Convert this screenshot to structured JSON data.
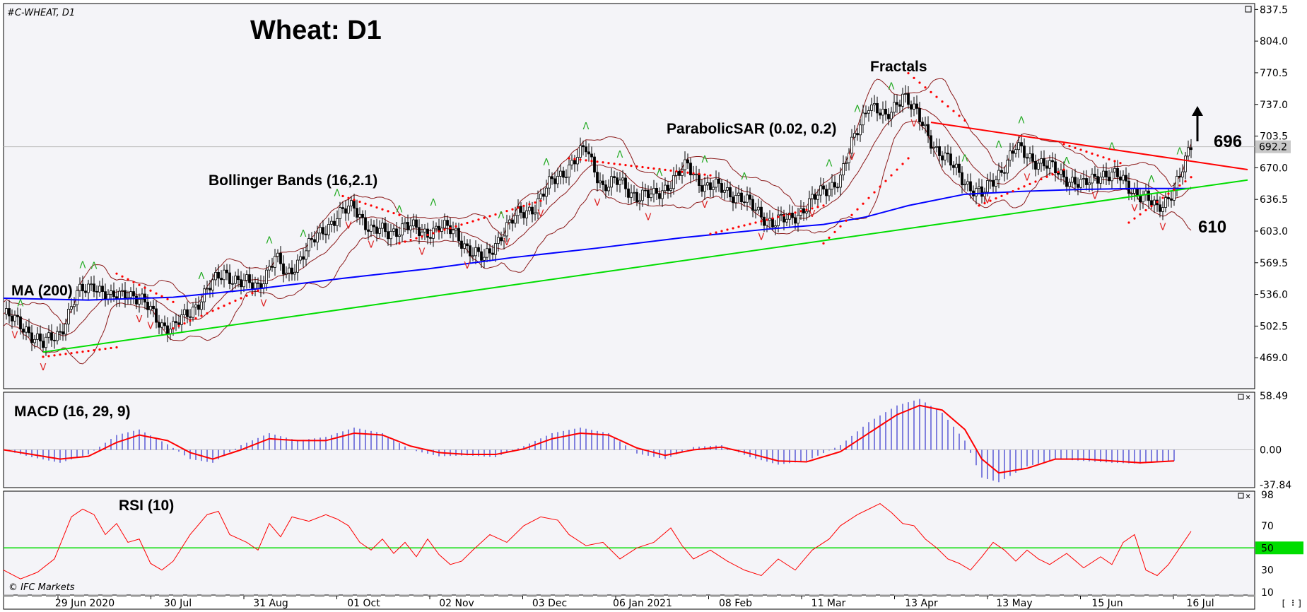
{
  "header": {
    "symbol": "#C-WHEAT, D1",
    "title": "Wheat: D1",
    "copyright": "© IFC Markets",
    "scroll_glyph": "[ ⠇]"
  },
  "colors": {
    "bull": "#ffffff",
    "bear": "#000000",
    "bollinger": "#8b1a1a",
    "ma": "#0000ff",
    "support": "#00dd00",
    "resistance": "#ff0000",
    "sar": "#ff0000",
    "fractal_up": "#22aa22",
    "fractal_down": "#dd2222",
    "macd_hist": "#3333cc",
    "macd_signal": "#ff0000",
    "rsi_line": "#ff0000",
    "rsi_level": "#00dd00",
    "price_tag": "#c8c8c8"
  },
  "labels": {
    "ma": "MA (200)",
    "bollinger": "Bollinger Bands (16,2.1)",
    "sar": "ParabolicSAR (0.02, 0.2)",
    "fractals": "Fractals",
    "macd": "MACD (16, 29, 9)",
    "rsi": "RSI (10)",
    "target": "696",
    "stop": "610"
  },
  "chart_data": [
    {
      "type": "candlestick",
      "title": "Wheat: D1",
      "y_ticks": [
        "837.5",
        "804.0",
        "770.5",
        "737.0",
        "703.5",
        "670.0",
        "636.5",
        "603.0",
        "569.5",
        "536.0",
        "502.5",
        "469.0"
      ],
      "ylim": [
        440,
        840
      ],
      "current_price": "692.2",
      "x_ticks": [
        "29 Jun 2020",
        "30 Jul",
        "31 Aug",
        "01 Oct",
        "02 Nov",
        "03 Dec",
        "06 Jan 2021",
        "08 Feb",
        "11 Mar",
        "13 Apr",
        "13 May",
        "15 Jun",
        "16 Jul"
      ],
      "close_path": [
        [
          0,
          515
        ],
        [
          8,
          500
        ],
        [
          14,
          482
        ],
        [
          20,
          497
        ],
        [
          26,
          535
        ],
        [
          32,
          548
        ],
        [
          38,
          530
        ],
        [
          44,
          540
        ],
        [
          50,
          525
        ],
        [
          56,
          505
        ],
        [
          60,
          500
        ],
        [
          66,
          518
        ],
        [
          72,
          540
        ],
        [
          78,
          560
        ],
        [
          84,
          548
        ],
        [
          90,
          545
        ],
        [
          96,
          575
        ],
        [
          100,
          555
        ],
        [
          106,
          580
        ],
        [
          112,
          600
        ],
        [
          118,
          620
        ],
        [
          124,
          628
        ],
        [
          130,
          605
        ],
        [
          136,
          600
        ],
        [
          142,
          610
        ],
        [
          148,
          600
        ],
        [
          154,
          608
        ],
        [
          160,
          600
        ],
        [
          166,
          580
        ],
        [
          170,
          572
        ],
        [
          176,
          600
        ],
        [
          182,
          620
        ],
        [
          188,
          630
        ],
        [
          194,
          655
        ],
        [
          200,
          672
        ],
        [
          206,
          690
        ],
        [
          212,
          650
        ],
        [
          218,
          655
        ],
        [
          224,
          640
        ],
        [
          230,
          640
        ],
        [
          236,
          655
        ],
        [
          242,
          672
        ],
        [
          248,
          650
        ],
        [
          254,
          648
        ],
        [
          260,
          640
        ],
        [
          266,
          625
        ],
        [
          272,
          612
        ],
        [
          278,
          615
        ],
        [
          284,
          630
        ],
        [
          290,
          645
        ],
        [
          296,
          660
        ],
        [
          302,
          710
        ],
        [
          306,
          740
        ],
        [
          312,
          720
        ],
        [
          318,
          750
        ],
        [
          324,
          720
        ],
        [
          330,
          690
        ],
        [
          336,
          670
        ],
        [
          342,
          650
        ],
        [
          346,
          640
        ],
        [
          352,
          665
        ],
        [
          358,
          690
        ],
        [
          364,
          680
        ],
        [
          370,
          670
        ],
        [
          376,
          660
        ],
        [
          382,
          650
        ],
        [
          388,
          665
        ],
        [
          394,
          660
        ],
        [
          398,
          650
        ],
        [
          404,
          638
        ],
        [
          408,
          625
        ],
        [
          412,
          640
        ],
        [
          416,
          660
        ],
        [
          418,
          675
        ],
        [
          420,
          692
        ]
      ],
      "series": [
        {
          "name": "MA (200)",
          "kind": "ma",
          "points": [
            [
              0,
              532
            ],
            [
              30,
              530
            ],
            [
              60,
              533
            ],
            [
              90,
              542
            ],
            [
              120,
              553
            ],
            [
              150,
              563
            ],
            [
              180,
              575
            ],
            [
              210,
              585
            ],
            [
              240,
              596
            ],
            [
              270,
              605
            ],
            [
              290,
              610
            ],
            [
              305,
              618
            ],
            [
              320,
              630
            ],
            [
              340,
              642
            ],
            [
              360,
              645
            ],
            [
              380,
              647
            ],
            [
              400,
              648
            ],
            [
              420,
              648
            ]
          ]
        },
        {
          "name": "support",
          "kind": "support",
          "points": [
            [
              14,
              475
            ],
            [
              440,
              657
            ]
          ]
        },
        {
          "name": "resistance",
          "kind": "resistance",
          "points": [
            [
              328,
              718
            ],
            [
              440,
              668
            ]
          ]
        }
      ],
      "sar_segments": [
        [
          [
            14,
            470
          ],
          [
            40,
            480
          ]
        ],
        [
          [
            40,
            558
          ],
          [
            60,
            528
          ]
        ],
        [
          [
            60,
            500
          ],
          [
            90,
            540
          ]
        ],
        [
          [
            120,
            640
          ],
          [
            140,
            620
          ]
        ],
        [
          [
            140,
            590
          ],
          [
            190,
            635
          ]
        ],
        [
          [
            200,
            680
          ],
          [
            250,
            662
          ]
        ],
        [
          [
            250,
            600
          ],
          [
            290,
            630
          ]
        ],
        [
          [
            290,
            590
          ],
          [
            320,
            680
          ]
        ],
        [
          [
            320,
            770
          ],
          [
            340,
            720
          ]
        ],
        [
          [
            345,
            630
          ],
          [
            375,
            668
          ]
        ],
        [
          [
            375,
            695
          ],
          [
            395,
            675
          ]
        ],
        [
          [
            398,
            612
          ],
          [
            420,
            660
          ]
        ]
      ],
      "fractals_up": [
        6,
        28,
        32,
        70,
        94,
        106,
        118,
        140,
        152,
        176,
        192,
        206,
        218,
        232,
        248,
        262,
        292,
        302,
        314,
        340,
        352,
        360,
        376,
        392,
        406,
        416
      ],
      "fractals_down": [
        4,
        14,
        48,
        52,
        92,
        122,
        130,
        148,
        164,
        178,
        190,
        210,
        228,
        248,
        268,
        286,
        300,
        322,
        348,
        362,
        386,
        400,
        410
      ],
      "target_level": 696,
      "stop_level": 610
    },
    {
      "type": "histogram",
      "title": "MACD (16, 29, 9)",
      "y_ticks": [
        "58.49",
        "0.00",
        "-37.84"
      ],
      "ylim": [
        -37.84,
        58.49
      ],
      "histogram": [
        [
          0,
          0
        ],
        [
          10,
          -8
        ],
        [
          20,
          -14
        ],
        [
          30,
          -5
        ],
        [
          40,
          16
        ],
        [
          48,
          22
        ],
        [
          58,
          6
        ],
        [
          66,
          -10
        ],
        [
          74,
          -14
        ],
        [
          84,
          5
        ],
        [
          94,
          18
        ],
        [
          104,
          10
        ],
        [
          114,
          14
        ],
        [
          124,
          24
        ],
        [
          134,
          18
        ],
        [
          144,
          0
        ],
        [
          154,
          -7
        ],
        [
          164,
          -6
        ],
        [
          174,
          -8
        ],
        [
          184,
          4
        ],
        [
          194,
          18
        ],
        [
          204,
          24
        ],
        [
          214,
          18
        ],
        [
          224,
          -4
        ],
        [
          234,
          -10
        ],
        [
          244,
          3
        ],
        [
          254,
          5
        ],
        [
          264,
          -8
        ],
        [
          274,
          -16
        ],
        [
          284,
          -12
        ],
        [
          296,
          5
        ],
        [
          306,
          30
        ],
        [
          316,
          48
        ],
        [
          324,
          55
        ],
        [
          332,
          40
        ],
        [
          340,
          10
        ],
        [
          346,
          -30
        ],
        [
          352,
          -35
        ],
        [
          362,
          -18
        ],
        [
          372,
          -10
        ],
        [
          382,
          -12
        ],
        [
          392,
          -14
        ],
        [
          402,
          -15
        ],
        [
          414,
          -12
        ]
      ],
      "signal": [
        [
          0,
          0
        ],
        [
          10,
          -5
        ],
        [
          20,
          -10
        ],
        [
          30,
          -7
        ],
        [
          40,
          8
        ],
        [
          48,
          16
        ],
        [
          58,
          10
        ],
        [
          66,
          -3
        ],
        [
          74,
          -10
        ],
        [
          84,
          0
        ],
        [
          94,
          12
        ],
        [
          104,
          10
        ],
        [
          114,
          10
        ],
        [
          124,
          18
        ],
        [
          134,
          16
        ],
        [
          144,
          4
        ],
        [
          154,
          -3
        ],
        [
          164,
          -5
        ],
        [
          174,
          -5
        ],
        [
          184,
          1
        ],
        [
          194,
          12
        ],
        [
          204,
          18
        ],
        [
          214,
          16
        ],
        [
          224,
          2
        ],
        [
          234,
          -6
        ],
        [
          244,
          0
        ],
        [
          254,
          3
        ],
        [
          264,
          -4
        ],
        [
          274,
          -12
        ],
        [
          284,
          -13
        ],
        [
          296,
          -2
        ],
        [
          306,
          18
        ],
        [
          316,
          38
        ],
        [
          324,
          48
        ],
        [
          332,
          43
        ],
        [
          340,
          22
        ],
        [
          346,
          -10
        ],
        [
          352,
          -25
        ],
        [
          362,
          -20
        ],
        [
          372,
          -10
        ],
        [
          382,
          -10
        ],
        [
          392,
          -12
        ],
        [
          402,
          -14
        ],
        [
          414,
          -12
        ]
      ]
    },
    {
      "type": "line",
      "title": "RSI (10)",
      "y_ticks": [
        "98",
        "70",
        "50",
        "30",
        "10"
      ],
      "ylim": [
        10,
        98
      ],
      "level": 50,
      "rsi": [
        [
          0,
          30
        ],
        [
          6,
          22
        ],
        [
          12,
          28
        ],
        [
          18,
          40
        ],
        [
          24,
          78
        ],
        [
          28,
          85
        ],
        [
          32,
          80
        ],
        [
          36,
          62
        ],
        [
          40,
          72
        ],
        [
          44,
          55
        ],
        [
          48,
          58
        ],
        [
          52,
          36
        ],
        [
          56,
          30
        ],
        [
          60,
          38
        ],
        [
          66,
          62
        ],
        [
          72,
          80
        ],
        [
          76,
          83
        ],
        [
          80,
          62
        ],
        [
          86,
          55
        ],
        [
          90,
          48
        ],
        [
          94,
          72
        ],
        [
          98,
          60
        ],
        [
          102,
          78
        ],
        [
          108,
          74
        ],
        [
          114,
          80
        ],
        [
          118,
          76
        ],
        [
          122,
          70
        ],
        [
          126,
          55
        ],
        [
          130,
          48
        ],
        [
          134,
          58
        ],
        [
          138,
          45
        ],
        [
          142,
          55
        ],
        [
          146,
          42
        ],
        [
          150,
          58
        ],
        [
          154,
          44
        ],
        [
          158,
          35
        ],
        [
          162,
          38
        ],
        [
          166,
          48
        ],
        [
          172,
          62
        ],
        [
          178,
          55
        ],
        [
          184,
          70
        ],
        [
          190,
          78
        ],
        [
          196,
          75
        ],
        [
          200,
          62
        ],
        [
          206,
          52
        ],
        [
          212,
          55
        ],
        [
          218,
          40
        ],
        [
          224,
          50
        ],
        [
          230,
          55
        ],
        [
          236,
          68
        ],
        [
          240,
          52
        ],
        [
          244,
          40
        ],
        [
          250,
          48
        ],
        [
          256,
          38
        ],
        [
          262,
          30
        ],
        [
          268,
          25
        ],
        [
          274,
          40
        ],
        [
          280,
          30
        ],
        [
          286,
          48
        ],
        [
          292,
          58
        ],
        [
          296,
          70
        ],
        [
          302,
          80
        ],
        [
          306,
          85
        ],
        [
          310,
          90
        ],
        [
          314,
          82
        ],
        [
          318,
          72
        ],
        [
          322,
          70
        ],
        [
          326,
          58
        ],
        [
          330,
          50
        ],
        [
          334,
          40
        ],
        [
          338,
          36
        ],
        [
          342,
          30
        ],
        [
          346,
          42
        ],
        [
          350,
          55
        ],
        [
          354,
          48
        ],
        [
          358,
          38
        ],
        [
          362,
          48
        ],
        [
          366,
          40
        ],
        [
          370,
          35
        ],
        [
          376,
          45
        ],
        [
          382,
          32
        ],
        [
          388,
          42
        ],
        [
          392,
          35
        ],
        [
          396,
          55
        ],
        [
          400,
          62
        ],
        [
          404,
          30
        ],
        [
          408,
          25
        ],
        [
          412,
          35
        ],
        [
          416,
          50
        ],
        [
          420,
          65
        ]
      ]
    }
  ]
}
